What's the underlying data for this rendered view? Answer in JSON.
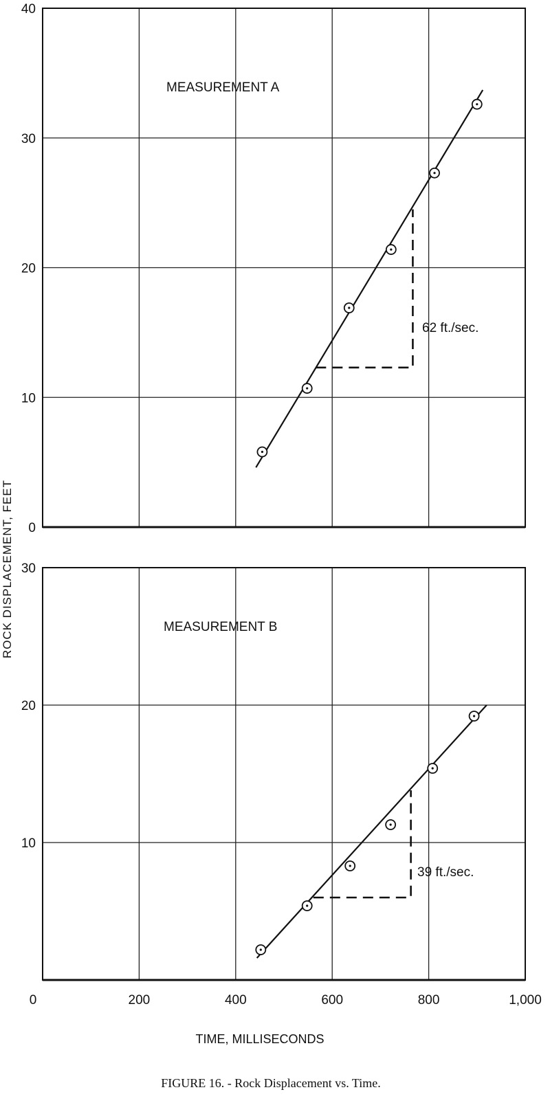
{
  "y_axis_label": "ROCK DISPLACEMENT, FEET",
  "x_axis_label": "TIME, MILLISECONDS",
  "caption": "FIGURE 16. - Rock Displacement vs. Time.",
  "chart_data": [
    {
      "type": "scatter",
      "annotation": "MEASUREMENT A",
      "slope_label": "62 ft./sec.",
      "xlim": [
        0,
        1000
      ],
      "ylim": [
        0,
        40
      ],
      "y_ticks": [
        "0",
        "10",
        "20",
        "30",
        "40"
      ],
      "points": {
        "x": [
          455,
          548,
          635,
          722,
          812,
          900
        ],
        "y": [
          5.8,
          10.7,
          16.9,
          21.4,
          27.3,
          32.6
        ]
      },
      "fit_line": {
        "x": [
          442,
          912
        ],
        "y": [
          4.6,
          33.7
        ]
      },
      "slope_triangle": {
        "x_start": 566,
        "x_end": 767,
        "y_low": 12.3,
        "y_high": 24.5
      }
    },
    {
      "type": "scatter",
      "annotation": "MEASUREMENT B",
      "slope_label": "39 ft./sec.",
      "xlim": [
        0,
        1000
      ],
      "ylim": [
        0,
        30
      ],
      "y_ticks": [
        "10",
        "20",
        "30"
      ],
      "x_ticks": [
        "0",
        "200",
        "400",
        "600",
        "800",
        "1,000"
      ],
      "points": {
        "x": [
          452,
          548,
          637,
          721,
          808,
          894
        ],
        "y": [
          2.2,
          5.4,
          8.3,
          11.3,
          15.4,
          19.2
        ]
      },
      "fit_line": {
        "x": [
          444,
          920
        ],
        "y": [
          1.6,
          20.0
        ]
      },
      "slope_triangle": {
        "x_start": 561,
        "x_end": 763,
        "y_low": 6.0,
        "y_high": 13.8
      }
    }
  ]
}
